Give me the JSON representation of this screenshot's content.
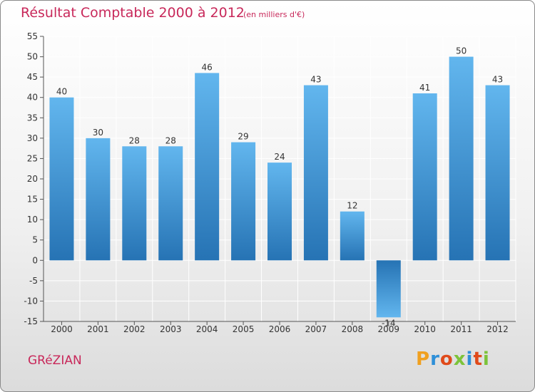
{
  "header": {
    "title": "Résultat Comptable 2000 à 2012",
    "subtitle": "(en milliers d'€)"
  },
  "footer": {
    "town": "GRéZIAN",
    "logo": "Proxiti",
    "logo_colors": [
      "#f0a020",
      "#2e8fd8",
      "#e04a1a",
      "#7cc33a",
      "#2e8fd8",
      "#e04a1a",
      "#7cc33a"
    ]
  },
  "colors": {
    "bar_light": "#5cb0ea",
    "bar_dark": "#2a78b8",
    "grid": "#ffffff",
    "accent": "#c8285a"
  },
  "chart_data": {
    "type": "bar",
    "title": "Résultat Comptable 2000 à 2012",
    "subtitle": "(en milliers d'€)",
    "categories": [
      "2000",
      "2001",
      "2002",
      "2003",
      "2004",
      "2005",
      "2006",
      "2007",
      "2008",
      "2009",
      "2010",
      "2011",
      "2012"
    ],
    "values": [
      40,
      30,
      28,
      28,
      46,
      29,
      24,
      43,
      12,
      -14,
      41,
      50,
      43
    ],
    "ylim": [
      -15,
      55
    ],
    "yticks": [
      55,
      50,
      45,
      40,
      35,
      30,
      25,
      20,
      15,
      10,
      5,
      0,
      -5,
      -10,
      -15
    ],
    "xlabel": "",
    "ylabel": "",
    "grid": true
  }
}
